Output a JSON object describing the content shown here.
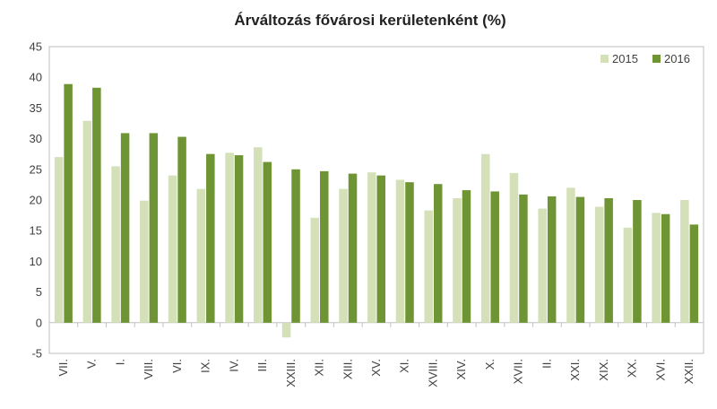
{
  "chart_data": {
    "type": "bar",
    "title": "Árváltozás fővárosi kerületenként (%)",
    "categories": [
      "VII.",
      "V.",
      "I.",
      "VIII.",
      "VI.",
      "IX.",
      "IV.",
      "III.",
      "XXIII.",
      "XII.",
      "XIII.",
      "XV.",
      "XI.",
      "XVIII.",
      "XIV.",
      "X.",
      "XVII.",
      "II.",
      "XXI.",
      "XIX.",
      "XX.",
      "XVI.",
      "XXII."
    ],
    "series": [
      {
        "name": "2015",
        "color": "#d3e0b8",
        "values": [
          27.0,
          32.9,
          25.5,
          19.9,
          24.0,
          21.8,
          27.7,
          28.6,
          -2.4,
          17.1,
          21.8,
          24.5,
          23.3,
          18.3,
          20.3,
          27.5,
          24.4,
          18.6,
          22.0,
          18.9,
          15.5,
          17.9,
          20.0
        ]
      },
      {
        "name": "2016",
        "color": "#6e9433",
        "values": [
          38.9,
          38.3,
          30.9,
          30.9,
          30.3,
          27.5,
          27.3,
          26.2,
          25.0,
          24.7,
          24.3,
          24.0,
          22.9,
          22.6,
          21.6,
          21.4,
          20.9,
          20.6,
          20.5,
          20.3,
          20.0,
          17.7,
          16.0
        ]
      }
    ],
    "ylim": [
      -5,
      45
    ],
    "yticks": [
      "-5",
      "0",
      "5",
      "10",
      "15",
      "20",
      "25",
      "30",
      "35",
      "40",
      "45"
    ],
    "xlabel": "",
    "ylabel": "",
    "grid": false,
    "legend": "top-right"
  }
}
